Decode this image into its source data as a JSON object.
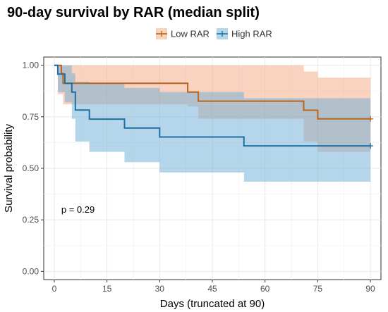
{
  "chart_data": {
    "type": "line",
    "subtype": "kaplan-meier-step",
    "title": "90-day survival by RAR (median split)",
    "xlabel": "Days (truncated at 90)",
    "ylabel": "Survival probability",
    "xlim": [
      -3,
      93
    ],
    "ylim": [
      -0.04,
      1.04
    ],
    "xticks": [
      0,
      15,
      30,
      45,
      60,
      75,
      90
    ],
    "yticks": [
      0.0,
      0.25,
      0.5,
      0.75,
      1.0
    ],
    "xtick_labels": [
      "0",
      "15",
      "30",
      "45",
      "60",
      "75",
      "90"
    ],
    "ytick_labels": [
      "0.00",
      "0.25",
      "0.50",
      "0.75",
      "1.00"
    ],
    "grid": true,
    "legend_position": "top",
    "annotation": "p = 0.29",
    "series": [
      {
        "name": "Low RAR",
        "color": "#D55E00",
        "band_color": "#F4A582",
        "curve_color": "#B8651E",
        "steps": [
          [
            0,
            1.0
          ],
          [
            2,
            0.96
          ],
          [
            2.5,
            0.913
          ],
          [
            38,
            0.87
          ],
          [
            41,
            0.826
          ],
          [
            71,
            0.782
          ],
          [
            75,
            0.74
          ]
        ],
        "upper": [
          [
            0,
            1.0
          ],
          [
            1,
            1.0
          ],
          [
            2.5,
            1.0
          ],
          [
            38,
            1.0
          ],
          [
            41,
            1.0
          ],
          [
            71,
            0.97
          ],
          [
            75,
            0.94
          ]
        ],
        "lower": [
          [
            0,
            1.0
          ],
          [
            1,
            0.86
          ],
          [
            2.5,
            0.81
          ],
          [
            38,
            0.8
          ],
          [
            41,
            0.74
          ],
          [
            71,
            0.63
          ],
          [
            75,
            0.58
          ]
        ],
        "end_x": 90
      },
      {
        "name": "High RAR",
        "color": "#1F78B4",
        "band_color": "#6BAED6",
        "curve_color": "#1F6FA5",
        "steps": [
          [
            0,
            1.0
          ],
          [
            1,
            0.957
          ],
          [
            3,
            0.913
          ],
          [
            5,
            0.87
          ],
          [
            6,
            0.783
          ],
          [
            10,
            0.739
          ],
          [
            20,
            0.696
          ],
          [
            30,
            0.652
          ],
          [
            54,
            0.609
          ]
        ],
        "upper": [
          [
            0,
            1.0
          ],
          [
            1,
            1.0
          ],
          [
            3,
            1.0
          ],
          [
            5,
            0.96
          ],
          [
            6,
            0.92
          ],
          [
            10,
            0.91
          ],
          [
            20,
            0.89
          ],
          [
            30,
            0.87
          ],
          [
            54,
            0.84
          ]
        ],
        "lower": [
          [
            0,
            1.0
          ],
          [
            1,
            0.87
          ],
          [
            3,
            0.82
          ],
          [
            5,
            0.74
          ],
          [
            6,
            0.63
          ],
          [
            10,
            0.58
          ],
          [
            20,
            0.53
          ],
          [
            30,
            0.48
          ],
          [
            54,
            0.435
          ]
        ],
        "end_x": 90
      }
    ]
  }
}
